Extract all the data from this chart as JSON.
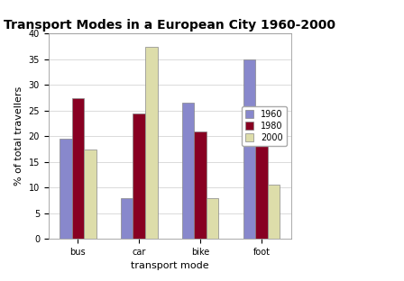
{
  "title": "Transport Modes in a European City 1960-2000",
  "xlabel": "transport mode",
  "ylabel": "% of total travellers",
  "categories": [
    "bus",
    "car",
    "bike",
    "foot"
  ],
  "years": [
    "1960",
    "1980",
    "2000"
  ],
  "values": {
    "1960": [
      19.5,
      8,
      26.5,
      35
    ],
    "1980": [
      27.5,
      24.5,
      21,
      18.5
    ],
    "2000": [
      17.5,
      37.5,
      8,
      10.5
    ]
  },
  "colors": {
    "1960": "#8888CC",
    "1980": "#880022",
    "2000": "#DDDDAA"
  },
  "ylim": [
    0,
    40
  ],
  "yticks": [
    0,
    5,
    10,
    15,
    20,
    25,
    30,
    35,
    40
  ],
  "bar_width": 0.2,
  "background_color": "#ffffff",
  "title_fontsize": 10,
  "axis_fontsize": 8,
  "tick_fontsize": 7,
  "legend_fontsize": 7
}
